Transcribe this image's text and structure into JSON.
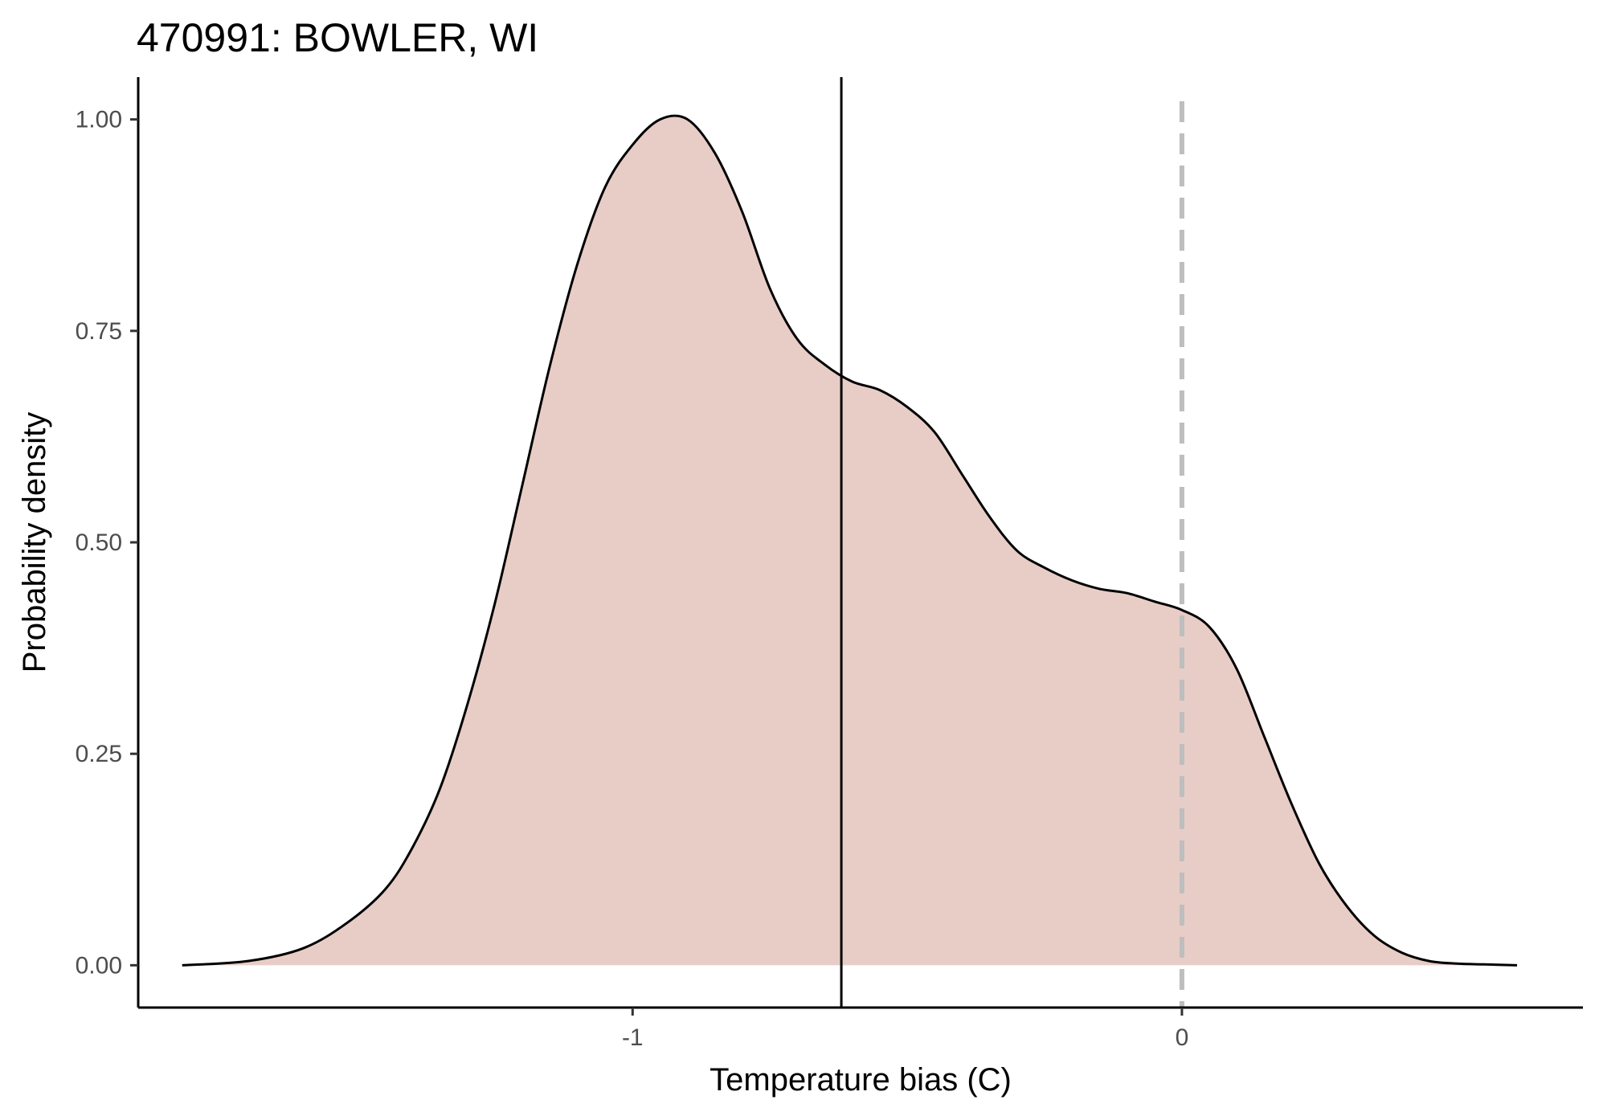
{
  "chart_data": {
    "type": "area",
    "title": "470991: BOWLER, WI",
    "xlabel": "Temperature bias (C)",
    "ylabel": "Probability density",
    "xlim": [
      -1.9,
      0.73
    ],
    "ylim": [
      -0.05,
      1.05
    ],
    "x_ticks": [
      -1,
      0
    ],
    "x_tick_labels": [
      "-1",
      "0"
    ],
    "y_ticks": [
      0,
      0.25,
      0.5,
      0.75,
      1.0
    ],
    "y_tick_labels": [
      "0.00",
      "0.25",
      "0.50",
      "0.75",
      "1.00"
    ],
    "grid": false,
    "legend": "none",
    "fill_color": "#e8cdc6",
    "line_color": "#000000",
    "density": {
      "x": [
        -1.82,
        -1.7,
        -1.6,
        -1.52,
        -1.45,
        -1.4,
        -1.35,
        -1.3,
        -1.25,
        -1.2,
        -1.15,
        -1.1,
        -1.05,
        -1.0,
        -0.95,
        -0.9,
        -0.85,
        -0.8,
        -0.75,
        -0.7,
        -0.65,
        -0.6,
        -0.55,
        -0.5,
        -0.45,
        -0.4,
        -0.35,
        -0.3,
        -0.25,
        -0.2,
        -0.15,
        -0.1,
        -0.05,
        0.0,
        0.05,
        0.1,
        0.15,
        0.2,
        0.25,
        0.3,
        0.35,
        0.4,
        0.45,
        0.5,
        0.55,
        0.61
      ],
      "y": [
        0.0,
        0.005,
        0.02,
        0.05,
        0.09,
        0.14,
        0.21,
        0.31,
        0.43,
        0.57,
        0.71,
        0.83,
        0.92,
        0.97,
        1.0,
        1.0,
        0.96,
        0.89,
        0.8,
        0.74,
        0.71,
        0.69,
        0.68,
        0.66,
        0.63,
        0.58,
        0.53,
        0.49,
        0.47,
        0.455,
        0.445,
        0.44,
        0.43,
        0.42,
        0.4,
        0.35,
        0.27,
        0.19,
        0.12,
        0.07,
        0.035,
        0.015,
        0.005,
        0.002,
        0.001,
        0.0
      ]
    },
    "vlines": [
      {
        "x": -0.62,
        "style": "solid",
        "color": "#000000"
      },
      {
        "x": 0.0,
        "style": "dashed",
        "color": "#bebebe"
      }
    ]
  }
}
